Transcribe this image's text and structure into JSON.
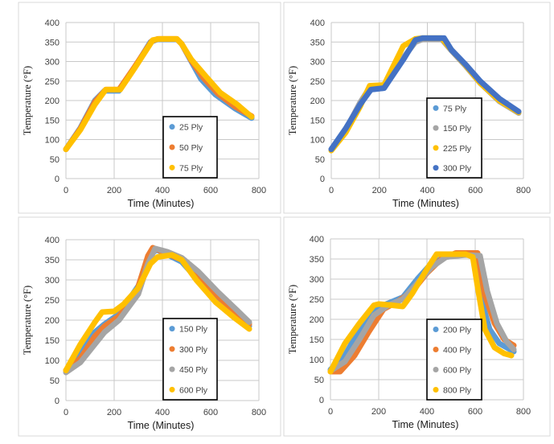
{
  "chart_data": [
    {
      "type": "line",
      "xlabel": "Time (Minutes)",
      "ylabel": "Temperature (°F)",
      "xlim": [
        0,
        800
      ],
      "ylim": [
        0,
        400
      ],
      "xticks": [
        "0",
        "200",
        "400",
        "600",
        "800"
      ],
      "yticks": [
        "0",
        "50",
        "100",
        "150",
        "200",
        "250",
        "300",
        "350",
        "400"
      ],
      "legend": "center-right",
      "series": [
        {
          "name": "25 Ply",
          "color": "#5b9bd5",
          "points": [
            [
              0,
              75
            ],
            [
              60,
              130
            ],
            [
              120,
              200
            ],
            [
              160,
              225
            ],
            [
              220,
              225
            ],
            [
              280,
              280
            ],
            [
              350,
              350
            ],
            [
              380,
              357
            ],
            [
              460,
              357
            ],
            [
              480,
              345
            ],
            [
              520,
              300
            ],
            [
              560,
              255
            ],
            [
              620,
              215
            ],
            [
              700,
              180
            ],
            [
              770,
              155
            ]
          ]
        },
        {
          "name": "50 Ply",
          "color": "#ed7d31",
          "points": [
            [
              0,
              75
            ],
            [
              60,
              128
            ],
            [
              120,
              197
            ],
            [
              165,
              228
            ],
            [
              220,
              228
            ],
            [
              280,
              282
            ],
            [
              355,
              352
            ],
            [
              380,
              358
            ],
            [
              460,
              358
            ],
            [
              480,
              345
            ],
            [
              520,
              302
            ],
            [
              570,
              258
            ],
            [
              630,
              218
            ],
            [
              700,
              185
            ],
            [
              770,
              160
            ]
          ]
        },
        {
          "name": "75 Ply",
          "color": "#ffc000",
          "points": [
            [
              0,
              75
            ],
            [
              60,
              125
            ],
            [
              120,
              190
            ],
            [
              165,
              228
            ],
            [
              225,
              228
            ],
            [
              285,
              283
            ],
            [
              360,
              355
            ],
            [
              385,
              358
            ],
            [
              460,
              358
            ],
            [
              480,
              345
            ],
            [
              520,
              305
            ],
            [
              580,
              262
            ],
            [
              640,
              220
            ],
            [
              710,
              190
            ],
            [
              770,
              158
            ]
          ]
        }
      ]
    },
    {
      "type": "line",
      "xlabel": "Time (Minutes)",
      "ylabel": "Temperature (°F)",
      "xlim": [
        0,
        800
      ],
      "ylim": [
        0,
        400
      ],
      "xticks": [
        "0",
        "200",
        "400",
        "600",
        "800"
      ],
      "yticks": [
        "0",
        "50",
        "100",
        "150",
        "200",
        "250",
        "300",
        "350",
        "400"
      ],
      "legend": "center-right",
      "series": [
        {
          "name": "75 Ply",
          "color": "#5b9bd5",
          "points": [
            [
              0,
              75
            ],
            [
              60,
              128
            ],
            [
              120,
              190
            ],
            [
              160,
              228
            ],
            [
              220,
              232
            ],
            [
              290,
              300
            ],
            [
              350,
              352
            ],
            [
              380,
              358
            ],
            [
              460,
              358
            ],
            [
              500,
              330
            ],
            [
              560,
              290
            ],
            [
              620,
              245
            ],
            [
              700,
              200
            ],
            [
              780,
              170
            ]
          ]
        },
        {
          "name": "150 Ply",
          "color": "#a5a5a5",
          "points": [
            [
              0,
              75
            ],
            [
              60,
              125
            ],
            [
              120,
              195
            ],
            [
              160,
              233
            ],
            [
              220,
              235
            ],
            [
              290,
              302
            ],
            [
              350,
              350
            ],
            [
              380,
              357
            ],
            [
              460,
              357
            ],
            [
              500,
              328
            ],
            [
              560,
              288
            ],
            [
              620,
              245
            ],
            [
              700,
              198
            ],
            [
              780,
              168
            ]
          ]
        },
        {
          "name": "225 Ply",
          "color": "#ffc000",
          "points": [
            [
              0,
              72
            ],
            [
              60,
              118
            ],
            [
              120,
              185
            ],
            [
              160,
              238
            ],
            [
              220,
              240
            ],
            [
              300,
              340
            ],
            [
              350,
              358
            ],
            [
              380,
              360
            ],
            [
              460,
              360
            ],
            [
              500,
              330
            ],
            [
              560,
              290
            ],
            [
              620,
              245
            ],
            [
              700,
              200
            ],
            [
              780,
              170
            ]
          ]
        },
        {
          "name": "300 Ply",
          "color": "#4472c4",
          "points": [
            [
              0,
              75
            ],
            [
              60,
              128
            ],
            [
              120,
              190
            ],
            [
              165,
              228
            ],
            [
              220,
              232
            ],
            [
              300,
              305
            ],
            [
              350,
              355
            ],
            [
              380,
              360
            ],
            [
              470,
              360
            ],
            [
              500,
              330
            ],
            [
              560,
              292
            ],
            [
              620,
              250
            ],
            [
              700,
              205
            ],
            [
              780,
              172
            ]
          ]
        }
      ]
    },
    {
      "type": "line",
      "xlabel": "Time (Minutes)",
      "ylabel": "Temperature (°F)",
      "xlim": [
        0,
        800
      ],
      "ylim": [
        0,
        400
      ],
      "xticks": [
        "0",
        "200",
        "400",
        "600",
        "800"
      ],
      "yticks": [
        "0",
        "50",
        "100",
        "150",
        "200",
        "250",
        "300",
        "350",
        "400"
      ],
      "legend": "center-right",
      "series": [
        {
          "name": "150 Ply",
          "color": "#5b9bd5",
          "points": [
            [
              0,
              75
            ],
            [
              60,
              115
            ],
            [
              120,
              170
            ],
            [
              160,
              190
            ],
            [
              220,
              215
            ],
            [
              300,
              285
            ],
            [
              350,
              362
            ],
            [
              375,
              375
            ],
            [
              430,
              360
            ],
            [
              480,
              345
            ],
            [
              540,
              305
            ],
            [
              620,
              260
            ],
            [
              700,
              215
            ],
            [
              760,
              185
            ]
          ]
        },
        {
          "name": "300 Ply",
          "color": "#ed7d31",
          "points": [
            [
              0,
              75
            ],
            [
              60,
              105
            ],
            [
              120,
              160
            ],
            [
              160,
              185
            ],
            [
              220,
              210
            ],
            [
              290,
              265
            ],
            [
              340,
              360
            ],
            [
              360,
              380
            ],
            [
              400,
              370
            ],
            [
              480,
              350
            ],
            [
              540,
              310
            ],
            [
              620,
              265
            ],
            [
              700,
              220
            ],
            [
              760,
              190
            ]
          ]
        },
        {
          "name": "450 Ply",
          "color": "#a5a5a5",
          "points": [
            [
              0,
              70
            ],
            [
              60,
              95
            ],
            [
              120,
              140
            ],
            [
              160,
              170
            ],
            [
              220,
              200
            ],
            [
              300,
              265
            ],
            [
              340,
              340
            ],
            [
              370,
              378
            ],
            [
              420,
              370
            ],
            [
              480,
              355
            ],
            [
              550,
              320
            ],
            [
              630,
              270
            ],
            [
              700,
              230
            ],
            [
              760,
              195
            ]
          ]
        },
        {
          "name": "600 Ply",
          "color": "#ffc000",
          "points": [
            [
              0,
              75
            ],
            [
              60,
              140
            ],
            [
              120,
              195
            ],
            [
              150,
              220
            ],
            [
              200,
              222
            ],
            [
              240,
              240
            ],
            [
              300,
              280
            ],
            [
              350,
              340
            ],
            [
              380,
              357
            ],
            [
              440,
              362
            ],
            [
              480,
              350
            ],
            [
              540,
              300
            ],
            [
              620,
              245
            ],
            [
              700,
              205
            ],
            [
              760,
              178
            ]
          ]
        }
      ]
    },
    {
      "type": "line",
      "xlabel": "Time (Minutes)",
      "ylabel": "Temperature (°F)",
      "xlim": [
        0,
        800
      ],
      "ylim": [
        0,
        400
      ],
      "xticks": [
        "0",
        "200",
        "400",
        "600",
        "800"
      ],
      "yticks": [
        "0",
        "50",
        "100",
        "150",
        "200",
        "250",
        "300",
        "350",
        "400"
      ],
      "legend": "center-right",
      "series": [
        {
          "name": "200 Ply",
          "color": "#5b9bd5",
          "points": [
            [
              0,
              75
            ],
            [
              60,
              110
            ],
            [
              120,
              175
            ],
            [
              180,
              225
            ],
            [
              240,
              240
            ],
            [
              300,
              255
            ],
            [
              360,
              300
            ],
            [
              420,
              340
            ],
            [
              480,
              355
            ],
            [
              560,
              362
            ],
            [
              600,
              355
            ],
            [
              620,
              260
            ],
            [
              660,
              175
            ],
            [
              700,
              140
            ],
            [
              760,
              120
            ]
          ]
        },
        {
          "name": "400 Ply",
          "color": "#ed7d31",
          "points": [
            [
              0,
              70
            ],
            [
              40,
              70
            ],
            [
              100,
              110
            ],
            [
              160,
              170
            ],
            [
              220,
              225
            ],
            [
              280,
              245
            ],
            [
              340,
              270
            ],
            [
              400,
              315
            ],
            [
              460,
              350
            ],
            [
              520,
              365
            ],
            [
              610,
              365
            ],
            [
              640,
              260
            ],
            [
              680,
              190
            ],
            [
              720,
              150
            ],
            [
              760,
              135
            ]
          ]
        },
        {
          "name": "600 Ply",
          "color": "#a5a5a5",
          "points": [
            [
              0,
              72
            ],
            [
              60,
              95
            ],
            [
              120,
              150
            ],
            [
              180,
              210
            ],
            [
              240,
              235
            ],
            [
              300,
              250
            ],
            [
              360,
              290
            ],
            [
              420,
              330
            ],
            [
              480,
              355
            ],
            [
              560,
              360
            ],
            [
              620,
              358
            ],
            [
              650,
              270
            ],
            [
              690,
              190
            ],
            [
              730,
              145
            ],
            [
              760,
              125
            ]
          ]
        },
        {
          "name": "800 Ply",
          "color": "#ffc000",
          "points": [
            [
              0,
              70
            ],
            [
              60,
              140
            ],
            [
              120,
              190
            ],
            [
              180,
              235
            ],
            [
              200,
              238
            ],
            [
              240,
              236
            ],
            [
              300,
              232
            ],
            [
              340,
              265
            ],
            [
              400,
              325
            ],
            [
              440,
              362
            ],
            [
              560,
              362
            ],
            [
              590,
              355
            ],
            [
              610,
              280
            ],
            [
              640,
              175
            ],
            [
              680,
              130
            ],
            [
              720,
              115
            ],
            [
              750,
              110
            ]
          ]
        }
      ]
    }
  ]
}
